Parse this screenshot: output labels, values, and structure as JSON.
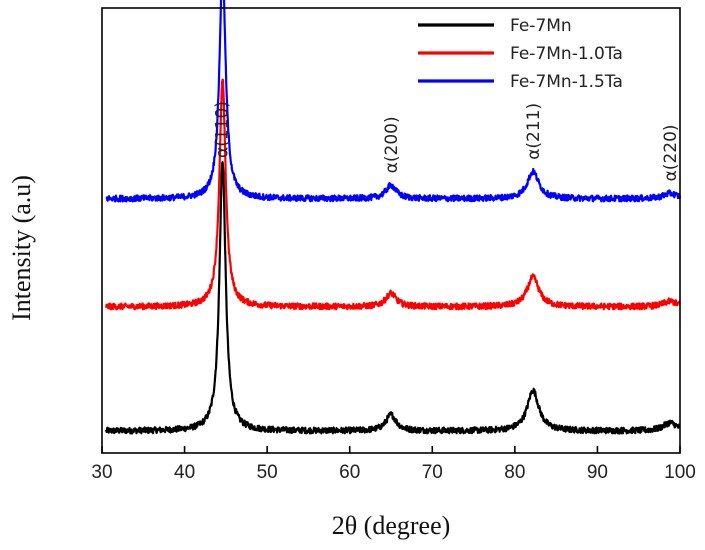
{
  "chart_data": {
    "type": "line",
    "xlabel": "2θ (degree)",
    "ylabel": "Intensity (a.u)",
    "xlim": [
      30,
      100
    ],
    "x_ticks": [
      30,
      40,
      50,
      60,
      70,
      80,
      90,
      100
    ],
    "y_ticks_shown": false,
    "grid": false,
    "legend_position": "top-right",
    "peaks": [
      {
        "label": "α(110)",
        "position": 44.6,
        "width": 0.45
      },
      {
        "label": "α(200)",
        "position": 65.0,
        "width": 0.75
      },
      {
        "label": "α(211)",
        "position": 82.2,
        "width": 0.85
      },
      {
        "label": "α(220)",
        "position": 98.8,
        "width": 1.0
      }
    ],
    "series": [
      {
        "name": "Fe-7Mn",
        "color": "#000000",
        "baseline": 0.0,
        "peak_heights": [
          1.0,
          0.06,
          0.15,
          0.03
        ]
      },
      {
        "name": "Fe-7Mn-1.0Ta",
        "color": "#ff0000",
        "baseline": 0.46,
        "peak_heights": [
          0.84,
          0.05,
          0.11,
          0.02
        ]
      },
      {
        "name": "Fe-7Mn-1.5Ta",
        "color": "#0000ff",
        "baseline": 0.86,
        "peak_heights": [
          0.86,
          0.05,
          0.1,
          0.02
        ]
      }
    ]
  }
}
